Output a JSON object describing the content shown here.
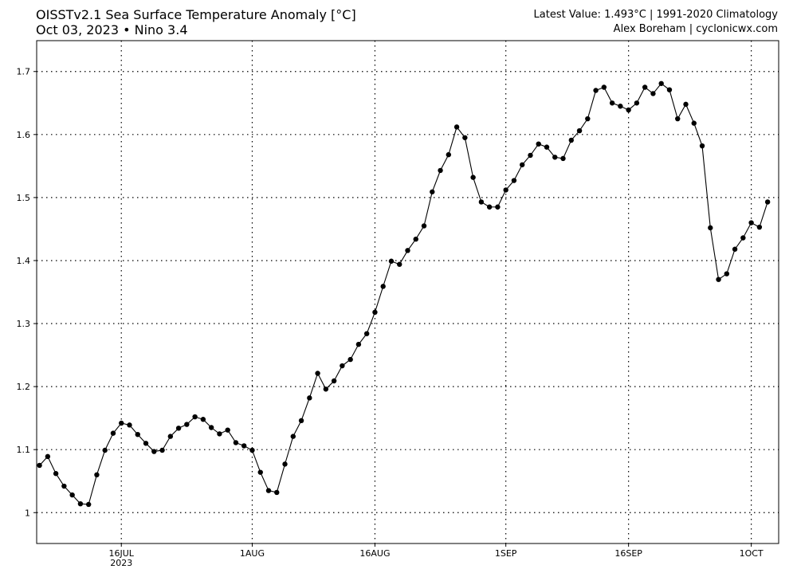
{
  "header": {
    "title": "OISSTv2.1 Sea Surface Temperature Anomaly [°C]",
    "date": "Oct 03, 2023",
    "region": "Nino 3.4",
    "latest": "Latest Value: 1.493°C | 1991-2020 Climatology",
    "credit": "Alex Boreham | cyclonicwx.com"
  },
  "chart_data": {
    "type": "line",
    "title": "OISSTv2.1 Sea Surface Temperature Anomaly [°C]",
    "subtitle": "Oct 03, 2023 • Nino 3.4",
    "xlabel": "",
    "ylabel": "",
    "start_date": "2023-07-06",
    "end_date": "2023-10-03",
    "x_ticks": [
      {
        "date": "2023-07-16",
        "label": "16JUL",
        "sublabel": "2023"
      },
      {
        "date": "2023-08-01",
        "label": "1AUG",
        "sublabel": ""
      },
      {
        "date": "2023-08-16",
        "label": "16AUG",
        "sublabel": ""
      },
      {
        "date": "2023-09-01",
        "label": "1SEP",
        "sublabel": ""
      },
      {
        "date": "2023-09-16",
        "label": "16SEP",
        "sublabel": ""
      },
      {
        "date": "2023-10-01",
        "label": "1OCT",
        "sublabel": ""
      }
    ],
    "y_ticks": [
      1,
      1.1,
      1.2,
      1.3,
      1.4,
      1.5,
      1.6,
      1.7
    ],
    "y_tick_labels": [
      "1",
      "1.1",
      "1.2",
      "1.3",
      "1.4",
      "1.5",
      "1.6",
      "1.7"
    ],
    "ylim": [
      0.951,
      1.749
    ],
    "xlim": [
      "2023-07-05",
      "2023-10-04"
    ],
    "grid": true,
    "series": [
      {
        "name": "",
        "color": "#000000",
        "values": [
          1.075,
          1.089,
          1.062,
          1.042,
          1.028,
          1.014,
          1.013,
          1.06,
          1.099,
          1.126,
          1.142,
          1.139,
          1.124,
          1.11,
          1.097,
          1.099,
          1.121,
          1.134,
          1.14,
          1.152,
          1.148,
          1.135,
          1.125,
          1.131,
          1.111,
          1.106,
          1.099,
          1.064,
          1.035,
          1.032,
          1.077,
          1.121,
          1.146,
          1.182,
          1.221,
          1.196,
          1.209,
          1.233,
          1.243,
          1.267,
          1.284,
          1.318,
          1.359,
          1.399,
          1.394,
          1.416,
          1.434,
          1.455,
          1.509,
          1.543,
          1.568,
          1.612,
          1.595,
          1.532,
          1.493,
          1.485,
          1.485,
          1.512,
          1.527,
          1.552,
          1.567,
          1.585,
          1.58,
          1.564,
          1.562,
          1.591,
          1.606,
          1.625,
          1.67,
          1.675,
          1.65,
          1.645,
          1.639,
          1.65,
          1.675,
          1.665,
          1.681,
          1.671,
          1.625,
          1.648,
          1.618,
          1.582,
          1.452,
          1.37,
          1.379,
          1.418,
          1.436,
          1.46,
          1.453,
          1.493
        ]
      }
    ]
  }
}
